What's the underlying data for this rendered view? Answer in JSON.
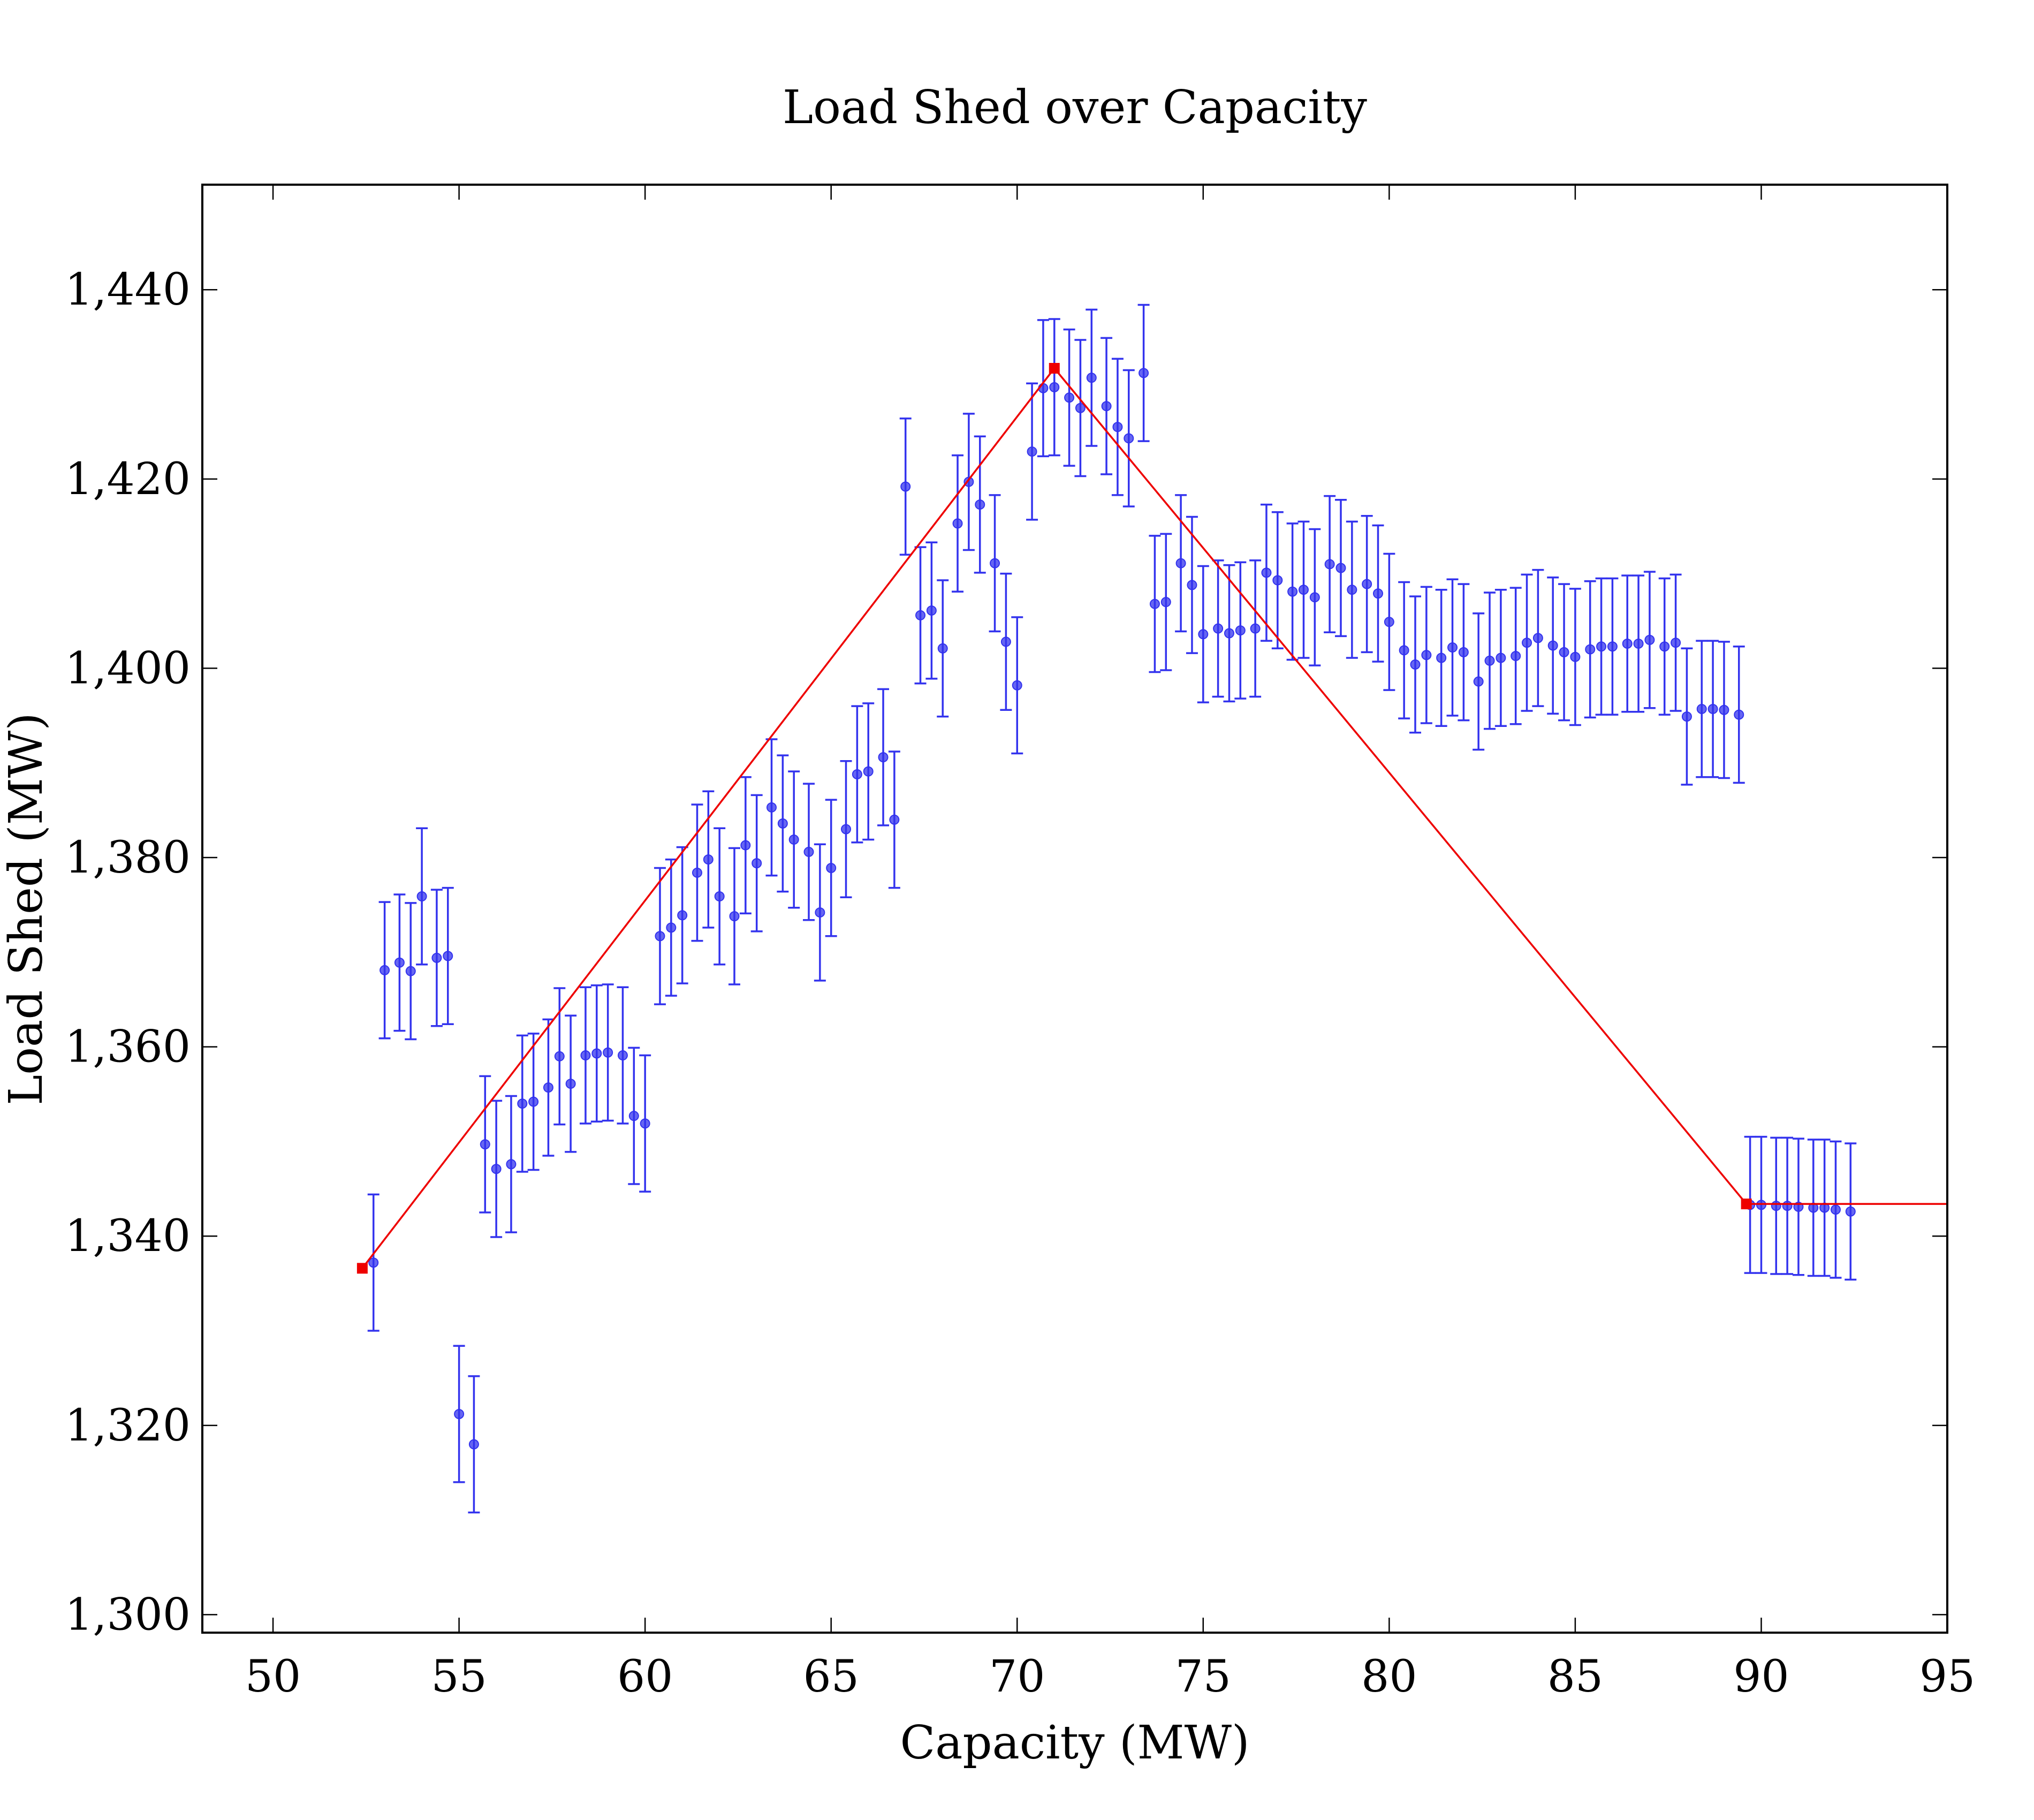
{
  "chart_data": {
    "type": "scatter",
    "title": "Load Shed over Capacity",
    "xlabel": "Capacity (MW)",
    "ylabel": "Load Shed (MW)",
    "xlim": [
      48.1,
      95
    ],
    "ylim": [
      1298.1,
      1451.1
    ],
    "x_ticks": [
      50,
      55,
      60,
      65,
      70,
      75,
      80,
      85,
      90,
      95
    ],
    "y_ticks": [
      1300,
      1320,
      1340,
      1360,
      1380,
      1400,
      1420,
      1440
    ],
    "y_tick_labels": [
      "1,300",
      "1,320",
      "1,340",
      "1,360",
      "1,380",
      "1,400",
      "1,420",
      "1,440"
    ],
    "grid": false,
    "legend": null,
    "series": [
      {
        "kind": "errorbar",
        "color": "#3333ee",
        "error": 7.2,
        "points": [
          [
            52.7,
            1337.2
          ],
          [
            53.0,
            1368.1
          ],
          [
            53.4,
            1368.9
          ],
          [
            53.7,
            1368.0
          ],
          [
            54.0,
            1375.9
          ],
          [
            54.4,
            1369.4
          ],
          [
            54.7,
            1369.6
          ],
          [
            55.0,
            1321.2
          ],
          [
            55.4,
            1318.0
          ],
          [
            55.7,
            1349.7
          ],
          [
            56.0,
            1347.1
          ],
          [
            56.4,
            1347.6
          ],
          [
            56.7,
            1354.0
          ],
          [
            57.0,
            1354.2
          ],
          [
            57.4,
            1355.7
          ],
          [
            57.7,
            1359.0
          ],
          [
            58.0,
            1356.1
          ],
          [
            58.4,
            1359.1
          ],
          [
            58.7,
            1359.3
          ],
          [
            59.0,
            1359.4
          ],
          [
            59.4,
            1359.1
          ],
          [
            59.7,
            1352.7
          ],
          [
            60.0,
            1351.9
          ],
          [
            60.4,
            1371.7
          ],
          [
            60.7,
            1372.6
          ],
          [
            61.0,
            1373.9
          ],
          [
            61.4,
            1378.4
          ],
          [
            61.7,
            1379.8
          ],
          [
            62.0,
            1375.9
          ],
          [
            62.4,
            1373.8
          ],
          [
            62.7,
            1381.3
          ],
          [
            63.0,
            1379.4
          ],
          [
            63.4,
            1385.3
          ],
          [
            63.7,
            1383.6
          ],
          [
            64.0,
            1381.9
          ],
          [
            64.4,
            1380.6
          ],
          [
            64.7,
            1374.2
          ],
          [
            65.0,
            1378.9
          ],
          [
            65.4,
            1383.0
          ],
          [
            65.7,
            1388.8
          ],
          [
            66.0,
            1389.1
          ],
          [
            66.4,
            1390.6
          ],
          [
            66.7,
            1384.0
          ],
          [
            67.0,
            1419.2
          ],
          [
            67.4,
            1405.6
          ],
          [
            67.7,
            1406.1
          ],
          [
            68.0,
            1402.1
          ],
          [
            68.4,
            1415.3
          ],
          [
            68.7,
            1419.7
          ],
          [
            69.0,
            1417.3
          ],
          [
            69.4,
            1411.1
          ],
          [
            69.7,
            1402.8
          ],
          [
            70.0,
            1398.2
          ],
          [
            70.4,
            1422.9
          ],
          [
            70.7,
            1429.6
          ],
          [
            71.0,
            1429.7
          ],
          [
            71.4,
            1428.6
          ],
          [
            71.7,
            1427.5
          ],
          [
            72.0,
            1430.7
          ],
          [
            72.4,
            1427.7
          ],
          [
            72.7,
            1425.5
          ],
          [
            73.0,
            1424.3
          ],
          [
            73.4,
            1431.2
          ],
          [
            73.7,
            1406.8
          ],
          [
            74.0,
            1407.0
          ],
          [
            74.4,
            1411.1
          ],
          [
            74.7,
            1408.8
          ],
          [
            75.0,
            1403.6
          ],
          [
            75.4,
            1404.2
          ],
          [
            75.7,
            1403.7
          ],
          [
            76.0,
            1404.0
          ],
          [
            76.4,
            1404.2
          ],
          [
            76.7,
            1410.1
          ],
          [
            77.0,
            1409.3
          ],
          [
            77.4,
            1408.1
          ],
          [
            77.7,
            1408.3
          ],
          [
            78.0,
            1407.5
          ],
          [
            78.4,
            1411.0
          ],
          [
            78.7,
            1410.6
          ],
          [
            79.0,
            1408.3
          ],
          [
            79.4,
            1408.9
          ],
          [
            79.7,
            1407.9
          ],
          [
            80.0,
            1404.9
          ],
          [
            80.4,
            1401.9
          ],
          [
            80.7,
            1400.4
          ],
          [
            81.0,
            1401.4
          ],
          [
            81.4,
            1401.1
          ],
          [
            81.7,
            1402.2
          ],
          [
            82.0,
            1401.7
          ],
          [
            82.4,
            1398.6
          ],
          [
            82.7,
            1400.8
          ],
          [
            83.0,
            1401.1
          ],
          [
            83.4,
            1401.3
          ],
          [
            83.7,
            1402.7
          ],
          [
            84.0,
            1403.2
          ],
          [
            84.4,
            1402.4
          ],
          [
            84.7,
            1401.7
          ],
          [
            85.0,
            1401.2
          ],
          [
            85.4,
            1402.0
          ],
          [
            85.7,
            1402.3
          ],
          [
            86.0,
            1402.3
          ],
          [
            86.4,
            1402.6
          ],
          [
            86.7,
            1402.6
          ],
          [
            87.0,
            1403.0
          ],
          [
            87.4,
            1402.3
          ],
          [
            87.7,
            1402.7
          ],
          [
            88.0,
            1394.9
          ],
          [
            88.4,
            1395.7
          ],
          [
            88.7,
            1395.7
          ],
          [
            89.0,
            1395.6
          ],
          [
            89.4,
            1395.1
          ],
          [
            89.7,
            1343.3
          ],
          [
            90.0,
            1343.3
          ],
          [
            90.4,
            1343.2
          ],
          [
            90.7,
            1343.2
          ],
          [
            91.0,
            1343.1
          ],
          [
            91.4,
            1343.0
          ],
          [
            91.7,
            1343.0
          ],
          [
            92.0,
            1342.8
          ],
          [
            92.4,
            1342.6
          ]
        ]
      },
      {
        "kind": "line",
        "color": "#ee0000",
        "marker": "square",
        "points": [
          [
            52.4,
            1336.6
          ],
          [
            71.0,
            1431.7
          ],
          [
            89.6,
            1343.4
          ],
          [
            95.0,
            1343.4
          ]
        ],
        "marker_points": [
          [
            52.4,
            1336.6
          ],
          [
            71.0,
            1431.7
          ],
          [
            89.6,
            1343.4
          ]
        ]
      }
    ]
  }
}
